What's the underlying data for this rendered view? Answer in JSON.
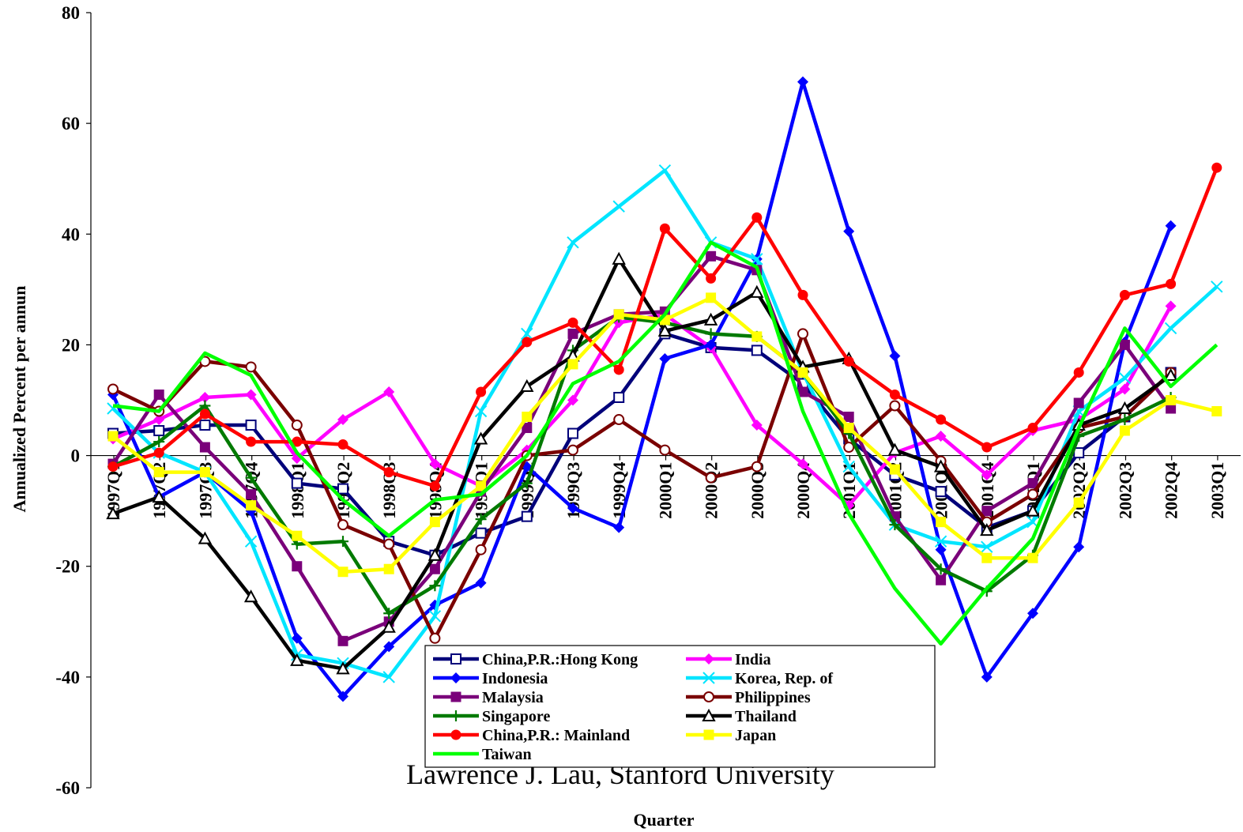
{
  "chart_data": {
    "type": "line",
    "title": "",
    "xlabel": "Quarter",
    "ylabel": "Annualized Percent per annun",
    "ylim": [
      -60,
      80
    ],
    "yticks": [
      80,
      60,
      40,
      20,
      0,
      -20,
      -40,
      -60
    ],
    "grid": false,
    "legend_position": "bottom-center",
    "annotation": "Lawrence J. Lau, Stanford University",
    "categories": [
      "1997Q1",
      "1997Q2",
      "1997Q3",
      "1997Q4",
      "1998Q1",
      "1998Q2",
      "1998Q3",
      "1998Q4",
      "1999Q1",
      "1999Q2",
      "1999Q3",
      "1999Q4",
      "2000Q1",
      "2000Q2",
      "2000Q3",
      "2000Q4",
      "2001Q1",
      "2001Q2",
      "2001Q3",
      "2001Q4",
      "2002Q1",
      "2002Q2",
      "2002Q3",
      "2002Q4",
      "2003Q1"
    ],
    "series": [
      {
        "name": "China,P.R.:Hong Kong",
        "color": "#00007a",
        "marker": "square-open",
        "values": [
          4,
          4.5,
          5.5,
          5.5,
          -5,
          -6,
          -15.5,
          -18,
          -14,
          -11,
          4,
          10.5,
          22,
          19.5,
          19,
          13,
          3,
          -3.5,
          -6.5,
          -13,
          -10,
          0.5,
          7,
          15,
          null
        ]
      },
      {
        "name": "India",
        "color": "#ff00ff",
        "marker": "diamond",
        "values": [
          3,
          6.5,
          10.5,
          11,
          -0.5,
          6.5,
          11.5,
          -1.5,
          -5.5,
          1,
          10,
          24,
          25.5,
          19.5,
          5.5,
          -1.5,
          -9,
          0.5,
          3.5,
          -3.5,
          4.5,
          6.5,
          12,
          27,
          null
        ]
      },
      {
        "name": "Indonesia",
        "color": "#0000ff",
        "marker": "diamond",
        "values": [
          11,
          -7.5,
          -3,
          -10,
          -33,
          -43.5,
          -34.5,
          -27,
          -23,
          -2,
          -9.5,
          -13,
          17.5,
          20,
          35.5,
          67.5,
          40.5,
          18,
          -17,
          -40,
          -28.5,
          -16.5,
          20.5,
          41.5,
          null
        ]
      },
      {
        "name": "Korea, Rep. of",
        "color": "#00e5ff",
        "marker": "x",
        "values": [
          8.5,
          0.5,
          -3,
          -15.5,
          -36,
          -37.5,
          -40,
          -29,
          8,
          22,
          38.5,
          45,
          51.5,
          38.5,
          35.5,
          15,
          -2,
          -12.5,
          -15.5,
          -16.5,
          -12,
          8,
          14,
          23,
          30.5
        ]
      },
      {
        "name": "Malaysia",
        "color": "#7a007a",
        "marker": "square",
        "values": [
          -1.5,
          11,
          1.5,
          -7,
          -20,
          -33.5,
          -30,
          -20.5,
          -6.5,
          5,
          22,
          25.5,
          26,
          36,
          33.5,
          11.5,
          7,
          -11,
          -22.5,
          -10,
          -5,
          9.5,
          20,
          8.5,
          null
        ]
      },
      {
        "name": "Philippines",
        "color": "#7a0000",
        "marker": "circle-open",
        "values": [
          12,
          8,
          17,
          16,
          5.5,
          -12.5,
          -16,
          -33,
          -17,
          0,
          1,
          6.5,
          1,
          -4,
          -2,
          22,
          1.5,
          9,
          -1,
          -12,
          -7,
          5,
          7,
          15,
          null
        ]
      },
      {
        "name": "Singapore",
        "color": "#007a00",
        "marker": "plus",
        "values": [
          -2,
          2.5,
          9,
          -4,
          -16,
          -15.5,
          -28.5,
          -23.5,
          -11.5,
          -5,
          19,
          25,
          24,
          22,
          21.5,
          15,
          4,
          -12.5,
          -20.5,
          -24.5,
          -18,
          3.5,
          6.5,
          10.5,
          null
        ]
      },
      {
        "name": "Thailand",
        "color": "#000000",
        "marker": "triangle-open",
        "values": [
          -10.5,
          -7.5,
          -15,
          -25.5,
          -37,
          -38.5,
          -31,
          -18,
          3,
          12.5,
          18,
          35.5,
          22.5,
          24.5,
          29.5,
          16,
          17.5,
          1,
          -2,
          -13.5,
          -10,
          5.5,
          8.5,
          14.5,
          null
        ]
      },
      {
        "name": "China,P.R.: Mainland",
        "color": "#ff0000",
        "marker": "circle",
        "values": [
          -2,
          0.5,
          7.5,
          2.5,
          2.5,
          2,
          -3,
          -5.5,
          11.5,
          20.5,
          24,
          15.5,
          41,
          32,
          43,
          29,
          17,
          11,
          6.5,
          1.5,
          5,
          15,
          29,
          31,
          52
        ]
      },
      {
        "name": "Japan",
        "color": "#ffff00",
        "marker": "square",
        "values": [
          3.5,
          -3,
          -3,
          -9,
          -14.5,
          -21,
          -20.5,
          -12,
          -5.5,
          7,
          16.5,
          25.5,
          24.5,
          28.5,
          21.5,
          15,
          5,
          -2.5,
          -12,
          -18.5,
          -18.5,
          -8.5,
          4.5,
          10,
          8
        ]
      },
      {
        "name": "Taiwan",
        "color": "#00ff00",
        "marker": "none",
        "values": [
          9,
          8,
          18.5,
          14.5,
          0.5,
          -8,
          -14.5,
          -8,
          -7,
          0,
          13,
          17,
          25.5,
          38.5,
          34,
          8,
          -10.5,
          -24,
          -34,
          -24,
          -15,
          5,
          23,
          12.5,
          20
        ]
      }
    ]
  }
}
